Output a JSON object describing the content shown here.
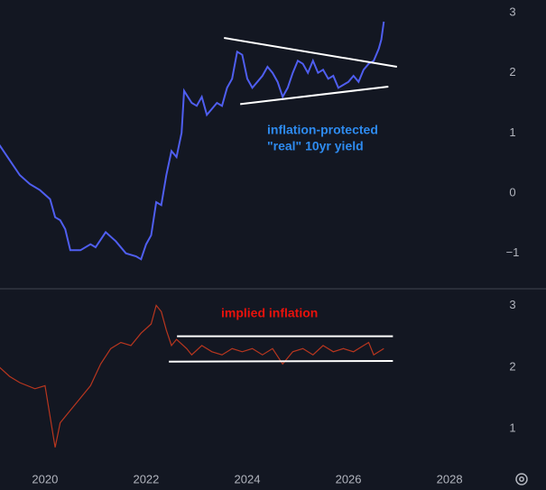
{
  "chart_data": [
    {
      "type": "line",
      "xlim": [
        2019.11,
        2028.89
      ],
      "ylim": [
        -1.56,
        3.21
      ],
      "yticks": [
        3,
        2,
        1,
        0,
        {
          "value": -1,
          "label": "−1"
        }
      ],
      "annotations": [
        "inflation-protected",
        "\"real\" 10yr yield"
      ],
      "annotation_color": "#2e8bf0",
      "trendline_color": "#ffffff",
      "trendlines": [
        {
          "x": [
            2023.54,
            2026.96
          ],
          "y": [
            2.58,
            2.1
          ]
        },
        {
          "x": [
            2023.86,
            2026.79
          ],
          "y": [
            1.48,
            1.77
          ]
        }
      ],
      "x": [
        2019.1,
        2019.3,
        2019.5,
        2019.7,
        2019.9,
        2020.1,
        2020.2,
        2020.3,
        2020.4,
        2020.5,
        2020.7,
        2020.9,
        2021.0,
        2021.2,
        2021.4,
        2021.6,
        2021.8,
        2021.9,
        2022.0,
        2022.1,
        2022.2,
        2022.3,
        2022.4,
        2022.5,
        2022.6,
        2022.7,
        2022.75,
        2022.9,
        2023.0,
        2023.1,
        2023.2,
        2023.4,
        2023.5,
        2023.6,
        2023.7,
        2023.8,
        2023.9,
        2024.0,
        2024.1,
        2024.2,
        2024.3,
        2024.4,
        2024.5,
        2024.6,
        2024.7,
        2024.8,
        2024.9,
        2025.0,
        2025.1,
        2025.2,
        2025.3,
        2025.4,
        2025.5,
        2025.6,
        2025.7,
        2025.8,
        2025.9,
        2026.0,
        2026.1,
        2026.2,
        2026.3,
        2026.4,
        2026.5,
        2026.6,
        2026.65,
        2026.7
      ],
      "series": [
        {
          "color": "#4f5ef0",
          "values": [
            0.8,
            0.55,
            0.3,
            0.15,
            0.05,
            -0.1,
            -0.4,
            -0.45,
            -0.6,
            -0.95,
            -0.95,
            -0.85,
            -0.9,
            -0.65,
            -0.8,
            -1.0,
            -1.05,
            -1.1,
            -0.85,
            -0.7,
            -0.15,
            -0.2,
            0.3,
            0.7,
            0.6,
            1.0,
            1.7,
            1.5,
            1.45,
            1.6,
            1.3,
            1.5,
            1.45,
            1.75,
            1.9,
            2.35,
            2.3,
            1.9,
            1.75,
            1.85,
            1.95,
            2.1,
            2.0,
            1.85,
            1.6,
            1.75,
            2.0,
            2.2,
            2.15,
            2.0,
            2.2,
            2.0,
            2.05,
            1.9,
            1.95,
            1.75,
            1.8,
            1.85,
            1.95,
            1.85,
            2.05,
            2.15,
            2.2,
            2.4,
            2.55,
            2.85
          ]
        }
      ]
    },
    {
      "type": "line",
      "xlim": [
        2019.11,
        2028.89
      ],
      "ylim": [
        0.42,
        3.24
      ],
      "yticks": [
        3,
        2,
        1
      ],
      "xticks": [
        2020,
        2022,
        2024,
        2026,
        2028
      ],
      "annotations": [
        "implied inflation"
      ],
      "annotation_color": "#e8120c",
      "trendline_color": "#ffffff",
      "trendlines": [
        {
          "x": [
            2022.61,
            2026.88
          ],
          "y": [
            2.5,
            2.5
          ]
        },
        {
          "x": [
            2022.45,
            2026.88
          ],
          "y": [
            2.09,
            2.1
          ]
        }
      ],
      "x": [
        2019.1,
        2019.3,
        2019.5,
        2019.8,
        2020.0,
        2020.2,
        2020.3,
        2020.5,
        2020.7,
        2020.9,
        2021.1,
        2021.3,
        2021.5,
        2021.7,
        2021.9,
        2022.1,
        2022.2,
        2022.3,
        2022.4,
        2022.5,
        2022.6,
        2022.8,
        2022.9,
        2023.1,
        2023.3,
        2023.5,
        2023.7,
        2023.9,
        2024.1,
        2024.3,
        2024.5,
        2024.7,
        2024.9,
        2025.1,
        2025.3,
        2025.5,
        2025.7,
        2025.9,
        2026.1,
        2026.3,
        2026.4,
        2026.5,
        2026.7
      ],
      "series": [
        {
          "color": "#b8361f",
          "values": [
            2.0,
            1.85,
            1.75,
            1.65,
            1.7,
            0.7,
            1.1,
            1.3,
            1.5,
            1.7,
            2.05,
            2.3,
            2.4,
            2.35,
            2.55,
            2.7,
            3.0,
            2.9,
            2.6,
            2.35,
            2.45,
            2.3,
            2.2,
            2.35,
            2.25,
            2.2,
            2.3,
            2.25,
            2.3,
            2.2,
            2.3,
            2.05,
            2.25,
            2.3,
            2.2,
            2.35,
            2.25,
            2.3,
            2.25,
            2.35,
            2.4,
            2.2,
            2.3
          ]
        }
      ]
    }
  ]
}
